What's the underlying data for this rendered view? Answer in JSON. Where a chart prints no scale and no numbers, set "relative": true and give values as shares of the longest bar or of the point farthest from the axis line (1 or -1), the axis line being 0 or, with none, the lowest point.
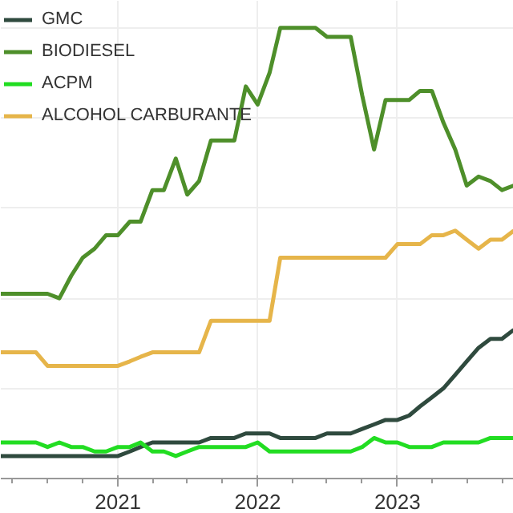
{
  "chart_data": {
    "type": "line",
    "relative": true,
    "x": [
      "2020-03",
      "2020-04",
      "2020-05",
      "2020-06",
      "2020-07",
      "2020-08",
      "2020-09",
      "2020-10",
      "2020-11",
      "2020-12",
      "2021-01",
      "2021-02",
      "2021-03",
      "2021-04",
      "2021-05",
      "2021-06",
      "2021-07",
      "2021-08",
      "2021-09",
      "2021-10",
      "2021-11",
      "2021-12",
      "2022-01",
      "2022-02",
      "2022-03",
      "2022-04",
      "2022-05",
      "2022-06",
      "2022-07",
      "2022-08",
      "2022-09",
      "2022-10",
      "2022-11",
      "2022-12",
      "2023-01",
      "2023-02",
      "2023-03",
      "2023-04",
      "2023-05",
      "2023-06",
      "2023-07",
      "2023-08",
      "2023-09",
      "2023-10",
      "2023-11"
    ],
    "xlim": [
      "2020-03",
      "2023-11"
    ],
    "xticks": [
      "2021",
      "2022",
      "2023"
    ],
    "grid": true,
    "legend": "top left",
    "series": [
      {
        "name": "GMC",
        "color": "#2f4a3e",
        "values": [
          0.05,
          0.05,
          0.05,
          0.05,
          0.05,
          0.05,
          0.05,
          0.05,
          0.05,
          0.05,
          0.05,
          0.06,
          0.07,
          0.08,
          0.08,
          0.08,
          0.08,
          0.08,
          0.09,
          0.09,
          0.09,
          0.1,
          0.1,
          0.1,
          0.09,
          0.09,
          0.09,
          0.09,
          0.1,
          0.1,
          0.1,
          0.11,
          0.12,
          0.13,
          0.13,
          0.14,
          0.16,
          0.18,
          0.2,
          0.23,
          0.26,
          0.29,
          0.31,
          0.31,
          0.33
        ]
      },
      {
        "name": "BIODIESEL",
        "color": "#4e8f2a",
        "values": [
          0.41,
          0.41,
          0.41,
          0.41,
          0.41,
          0.4,
          0.45,
          0.49,
          0.51,
          0.54,
          0.54,
          0.57,
          0.57,
          0.64,
          0.64,
          0.71,
          0.63,
          0.66,
          0.75,
          0.75,
          0.75,
          0.87,
          0.83,
          0.9,
          1,
          1,
          1,
          1,
          0.98,
          0.98,
          0.98,
          0.85,
          0.73,
          0.84,
          0.84,
          0.84,
          0.86,
          0.86,
          0.79,
          0.73,
          0.65,
          0.67,
          0.66,
          0.64,
          0.65
        ]
      },
      {
        "name": "ACPM",
        "color": "#22dd22",
        "values": [
          0.08,
          0.08,
          0.08,
          0.08,
          0.07,
          0.08,
          0.07,
          0.07,
          0.06,
          0.06,
          0.07,
          0.07,
          0.08,
          0.06,
          0.06,
          0.05,
          0.06,
          0.07,
          0.07,
          0.07,
          0.07,
          0.07,
          0.08,
          0.06,
          0.06,
          0.06,
          0.06,
          0.06,
          0.06,
          0.06,
          0.06,
          0.07,
          0.09,
          0.08,
          0.08,
          0.07,
          0.07,
          0.07,
          0.08,
          0.08,
          0.08,
          0.08,
          0.09,
          0.09,
          0.09
        ]
      },
      {
        "name": "ALCOHOL CARBURANTE",
        "color": "#e6b54a",
        "values": [
          0.28,
          0.28,
          0.28,
          0.28,
          0.25,
          0.25,
          0.25,
          0.25,
          0.25,
          0.25,
          0.25,
          0.26,
          0.27,
          0.28,
          0.28,
          0.28,
          0.28,
          0.28,
          0.35,
          0.35,
          0.35,
          0.35,
          0.35,
          0.35,
          0.49,
          0.49,
          0.49,
          0.49,
          0.49,
          0.49,
          0.49,
          0.49,
          0.49,
          0.49,
          0.52,
          0.52,
          0.52,
          0.54,
          0.54,
          0.55,
          0.53,
          0.51,
          0.53,
          0.53,
          0.55
        ]
      }
    ]
  }
}
